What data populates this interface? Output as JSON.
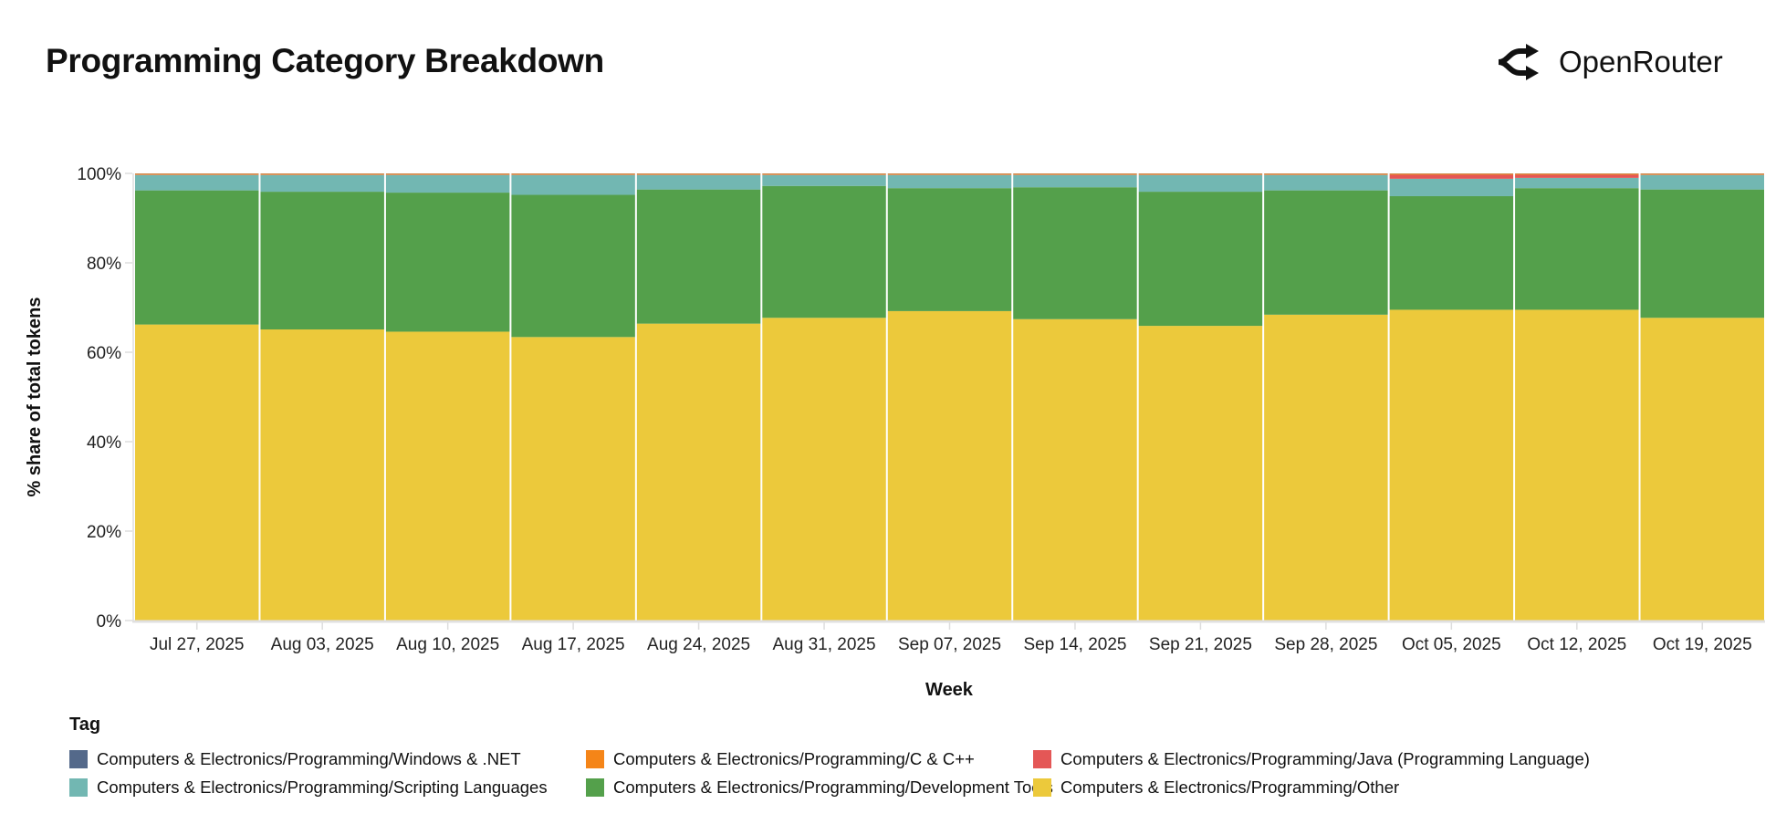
{
  "title": "Programming Category Breakdown",
  "brand": {
    "name": "OpenRouter",
    "icon": "openrouter-arrows-icon"
  },
  "chart_data": {
    "type": "bar",
    "stacked": true,
    "normalized": true,
    "xlabel": "Week",
    "ylabel": "% share of total tokens",
    "ylim": [
      0,
      100
    ],
    "yticks": [
      "0%",
      "20%",
      "40%",
      "60%",
      "80%",
      "100%"
    ],
    "ytick_values": [
      0,
      20,
      40,
      60,
      80,
      100
    ],
    "grid": false,
    "legend_title": "Tag",
    "legend_position": "bottom",
    "categories": [
      "Jul 27, 2025",
      "Aug 03, 2025",
      "Aug 10, 2025",
      "Aug 17, 2025",
      "Aug 24, 2025",
      "Aug 31, 2025",
      "Sep 07, 2025",
      "Sep 14, 2025",
      "Sep 21, 2025",
      "Sep 28, 2025",
      "Oct 05, 2025",
      "Oct 12, 2025",
      "Oct 19, 2025"
    ],
    "series": [
      {
        "name": "Computers & Electronics/Programming/Other",
        "color": "#ecc93b",
        "values": [
          66.2,
          65.1,
          64.6,
          63.4,
          66.4,
          67.7,
          69.2,
          67.4,
          65.9,
          68.4,
          69.5,
          69.5,
          67.7
        ]
      },
      {
        "name": "Computers & Electronics/Programming/Development Tools",
        "color": "#54a04b",
        "values": [
          30.0,
          30.8,
          31.1,
          31.8,
          30.0,
          29.5,
          27.5,
          29.5,
          30.0,
          27.8,
          25.4,
          27.2,
          28.7
        ]
      },
      {
        "name": "Computers & Electronics/Programming/Scripting Languages",
        "color": "#72b7b2",
        "values": [
          3.45,
          3.75,
          3.95,
          4.45,
          3.25,
          2.45,
          2.95,
          2.75,
          3.75,
          3.45,
          3.9,
          2.3,
          3.25
        ]
      },
      {
        "name": "Computers & Electronics/Programming/Java (Programming Language)",
        "color": "#e45756",
        "values": [
          0.05,
          0.05,
          0.05,
          0.05,
          0.05,
          0.05,
          0.05,
          0.05,
          0.05,
          0.05,
          0.9,
          0.7,
          0.05
        ]
      },
      {
        "name": "Computers & Electronics/Programming/C & C++",
        "color": "#f58518",
        "values": [
          0.25,
          0.25,
          0.25,
          0.25,
          0.25,
          0.25,
          0.25,
          0.25,
          0.25,
          0.25,
          0.25,
          0.25,
          0.25
        ]
      },
      {
        "name": "Computers & Electronics/Programming/Windows & .NET",
        "color": "#54698a",
        "values": [
          0.05,
          0.05,
          0.05,
          0.05,
          0.05,
          0.05,
          0.05,
          0.05,
          0.05,
          0.05,
          0.05,
          0.05,
          0.05
        ]
      }
    ],
    "legend_order": [
      5,
      4,
      3,
      2,
      1,
      0
    ]
  }
}
